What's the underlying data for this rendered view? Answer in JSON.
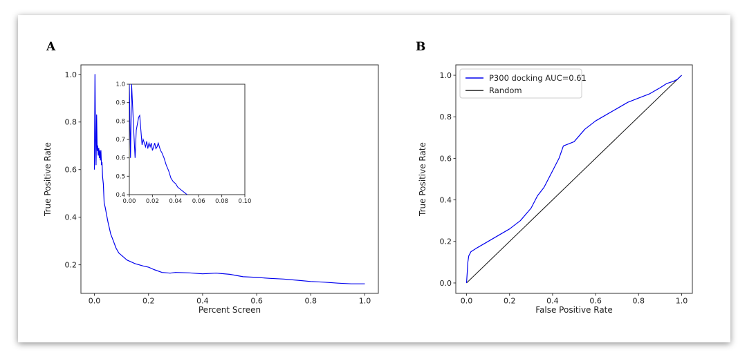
{
  "figure": {
    "panel_a_letter": "A",
    "panel_b_letter": "B"
  },
  "colors": {
    "series": "#0000ee",
    "random": "#222222",
    "axes": "#333333"
  },
  "chart_data": [
    {
      "type": "line",
      "panel": "A",
      "xlabel": "Percent Screen",
      "ylabel": "True Positive Rate",
      "xlim": [
        -0.05,
        1.05
      ],
      "ylim": [
        0.08,
        1.04
      ],
      "xticks": [
        0.0,
        0.2,
        0.4,
        0.6,
        0.8,
        1.0
      ],
      "xtick_labels": [
        "0.0",
        "0.2",
        "0.4",
        "0.6",
        "0.8",
        "1.0"
      ],
      "yticks": [
        0.2,
        0.4,
        0.6,
        0.8,
        1.0
      ],
      "ytick_labels": [
        "0.2",
        "0.4",
        "0.6",
        "0.8",
        "1.0"
      ],
      "series": [
        {
          "color": "#0000ee",
          "points": [
            [
              0.0,
              0.6
            ],
            [
              0.002,
              1.0
            ],
            [
              0.004,
              0.72
            ],
            [
              0.006,
              0.62
            ],
            [
              0.008,
              0.83
            ],
            [
              0.01,
              0.68
            ],
            [
              0.012,
              0.7
            ],
            [
              0.014,
              0.66
            ],
            [
              0.016,
              0.69
            ],
            [
              0.018,
              0.65
            ],
            [
              0.02,
              0.68
            ],
            [
              0.022,
              0.64
            ],
            [
              0.024,
              0.68
            ],
            [
              0.026,
              0.62
            ],
            [
              0.028,
              0.63
            ],
            [
              0.03,
              0.57
            ],
            [
              0.033,
              0.54
            ],
            [
              0.036,
              0.46
            ],
            [
              0.04,
              0.44
            ],
            [
              0.045,
              0.41
            ],
            [
              0.05,
              0.38
            ],
            [
              0.06,
              0.33
            ],
            [
              0.07,
              0.3
            ],
            [
              0.08,
              0.27
            ],
            [
              0.09,
              0.25
            ],
            [
              0.1,
              0.24
            ],
            [
              0.12,
              0.22
            ],
            [
              0.15,
              0.205
            ],
            [
              0.18,
              0.195
            ],
            [
              0.2,
              0.19
            ],
            [
              0.22,
              0.18
            ],
            [
              0.25,
              0.168
            ],
            [
              0.28,
              0.165
            ],
            [
              0.3,
              0.168
            ],
            [
              0.35,
              0.166
            ],
            [
              0.4,
              0.162
            ],
            [
              0.45,
              0.165
            ],
            [
              0.5,
              0.16
            ],
            [
              0.55,
              0.15
            ],
            [
              0.6,
              0.147
            ],
            [
              0.65,
              0.143
            ],
            [
              0.7,
              0.14
            ],
            [
              0.75,
              0.135
            ],
            [
              0.8,
              0.13
            ],
            [
              0.85,
              0.127
            ],
            [
              0.9,
              0.123
            ],
            [
              0.95,
              0.12
            ],
            [
              1.0,
              0.12
            ]
          ]
        }
      ],
      "inset": {
        "xlim": [
          0.0,
          0.1
        ],
        "ylim": [
          0.4,
          1.0
        ],
        "xticks": [
          0.0,
          0.02,
          0.04,
          0.06,
          0.08,
          0.1
        ],
        "xtick_labels": [
          "0.00",
          "0.02",
          "0.04",
          "0.06",
          "0.08",
          "0.10"
        ],
        "yticks": [
          0.4,
          0.5,
          0.6,
          0.7,
          0.8,
          0.9,
          1.0
        ],
        "ytick_labels": [
          "0.4",
          "0.5",
          "0.6",
          "0.7",
          "0.8",
          "0.9",
          "1.0"
        ],
        "points": [
          [
            0.0,
            1.0
          ],
          [
            0.001,
            0.6
          ],
          [
            0.002,
            1.0
          ],
          [
            0.004,
            0.72
          ],
          [
            0.005,
            0.6
          ],
          [
            0.006,
            0.75
          ],
          [
            0.008,
            0.82
          ],
          [
            0.009,
            0.83
          ],
          [
            0.01,
            0.75
          ],
          [
            0.011,
            0.67
          ],
          [
            0.012,
            0.7
          ],
          [
            0.013,
            0.68
          ],
          [
            0.014,
            0.66
          ],
          [
            0.015,
            0.69
          ],
          [
            0.016,
            0.65
          ],
          [
            0.017,
            0.68
          ],
          [
            0.018,
            0.66
          ],
          [
            0.019,
            0.68
          ],
          [
            0.02,
            0.64
          ],
          [
            0.021,
            0.66
          ],
          [
            0.022,
            0.68
          ],
          [
            0.023,
            0.65
          ],
          [
            0.024,
            0.66
          ],
          [
            0.025,
            0.68
          ],
          [
            0.026,
            0.66
          ],
          [
            0.027,
            0.64
          ],
          [
            0.028,
            0.63
          ],
          [
            0.03,
            0.6
          ],
          [
            0.032,
            0.56
          ],
          [
            0.034,
            0.53
          ],
          [
            0.036,
            0.49
          ],
          [
            0.038,
            0.47
          ],
          [
            0.04,
            0.46
          ],
          [
            0.042,
            0.44
          ],
          [
            0.044,
            0.43
          ],
          [
            0.046,
            0.42
          ],
          [
            0.048,
            0.41
          ],
          [
            0.05,
            0.4
          ]
        ]
      }
    },
    {
      "type": "line",
      "panel": "B",
      "xlabel": "False Positive Rate",
      "ylabel": "True Positive Rate",
      "xlim": [
        -0.05,
        1.05
      ],
      "ylim": [
        -0.05,
        1.05
      ],
      "xticks": [
        0.0,
        0.2,
        0.4,
        0.6,
        0.8,
        1.0
      ],
      "xtick_labels": [
        "0.0",
        "0.2",
        "0.4",
        "0.6",
        "0.8",
        "1.0"
      ],
      "yticks": [
        0.0,
        0.2,
        0.4,
        0.6,
        0.8,
        1.0
      ],
      "ytick_labels": [
        "0.0",
        "0.2",
        "0.4",
        "0.6",
        "0.8",
        "1.0"
      ],
      "legend_position": "top-left",
      "series": [
        {
          "name": "P300 docking AUC=0.61",
          "color": "#0000ee",
          "points": [
            [
              0.0,
              0.0
            ],
            [
              0.003,
              0.05
            ],
            [
              0.006,
              0.1
            ],
            [
              0.01,
              0.13
            ],
            [
              0.02,
              0.15
            ],
            [
              0.05,
              0.17
            ],
            [
              0.1,
              0.2
            ],
            [
              0.15,
              0.23
            ],
            [
              0.2,
              0.26
            ],
            [
              0.25,
              0.3
            ],
            [
              0.3,
              0.36
            ],
            [
              0.33,
              0.42
            ],
            [
              0.36,
              0.46
            ],
            [
              0.4,
              0.54
            ],
            [
              0.43,
              0.6
            ],
            [
              0.45,
              0.66
            ],
            [
              0.5,
              0.68
            ],
            [
              0.55,
              0.74
            ],
            [
              0.6,
              0.78
            ],
            [
              0.65,
              0.81
            ],
            [
              0.7,
              0.84
            ],
            [
              0.75,
              0.87
            ],
            [
              0.8,
              0.89
            ],
            [
              0.85,
              0.91
            ],
            [
              0.9,
              0.94
            ],
            [
              0.93,
              0.96
            ],
            [
              0.96,
              0.97
            ],
            [
              0.98,
              0.98
            ],
            [
              0.99,
              0.99
            ],
            [
              1.0,
              1.0
            ]
          ]
        },
        {
          "name": "Random",
          "color": "#222222",
          "points": [
            [
              0.0,
              0.0
            ],
            [
              1.0,
              1.0
            ]
          ]
        }
      ]
    }
  ]
}
